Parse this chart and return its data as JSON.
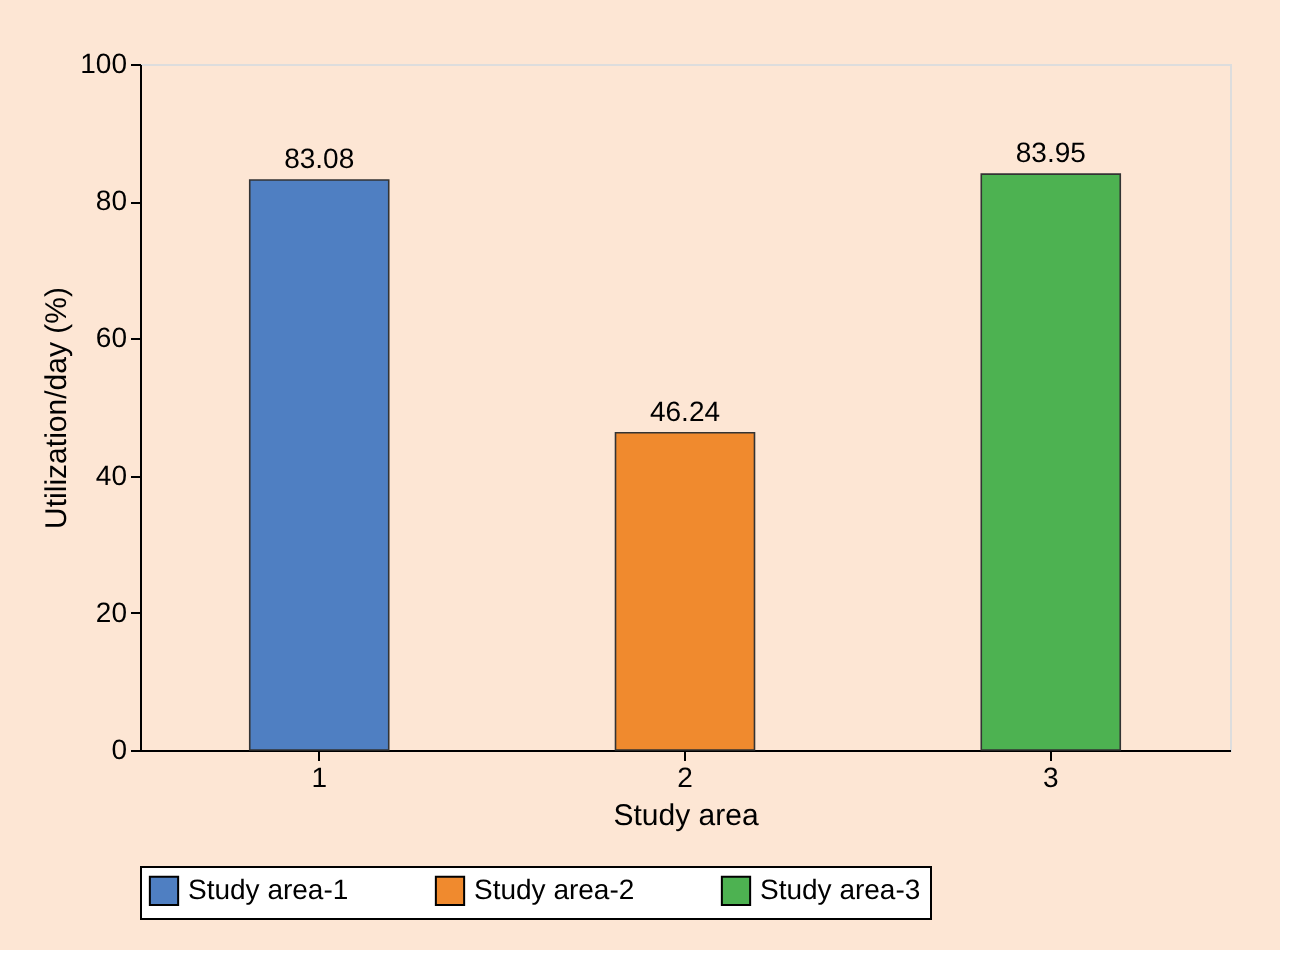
{
  "chart_data": {
    "type": "bar",
    "xlabel": "Study area",
    "ylabel": "Utilization/day (%)",
    "categories": [
      "1",
      "2",
      "3"
    ],
    "series": [
      {
        "name": "Study area-1",
        "color": "#4f7fc2",
        "values": [
          83.08,
          null,
          null
        ]
      },
      {
        "name": "Study area-2",
        "color": "#f08a2e",
        "values": [
          null,
          46.24,
          null
        ]
      },
      {
        "name": "Study area-3",
        "color": "#4db251",
        "values": [
          null,
          null,
          83.95
        ]
      }
    ],
    "ylim": [
      0,
      100
    ],
    "yticks": [
      0,
      20,
      40,
      60,
      80,
      100
    ],
    "grid": false,
    "legend": "bottom",
    "data_labels": true
  }
}
